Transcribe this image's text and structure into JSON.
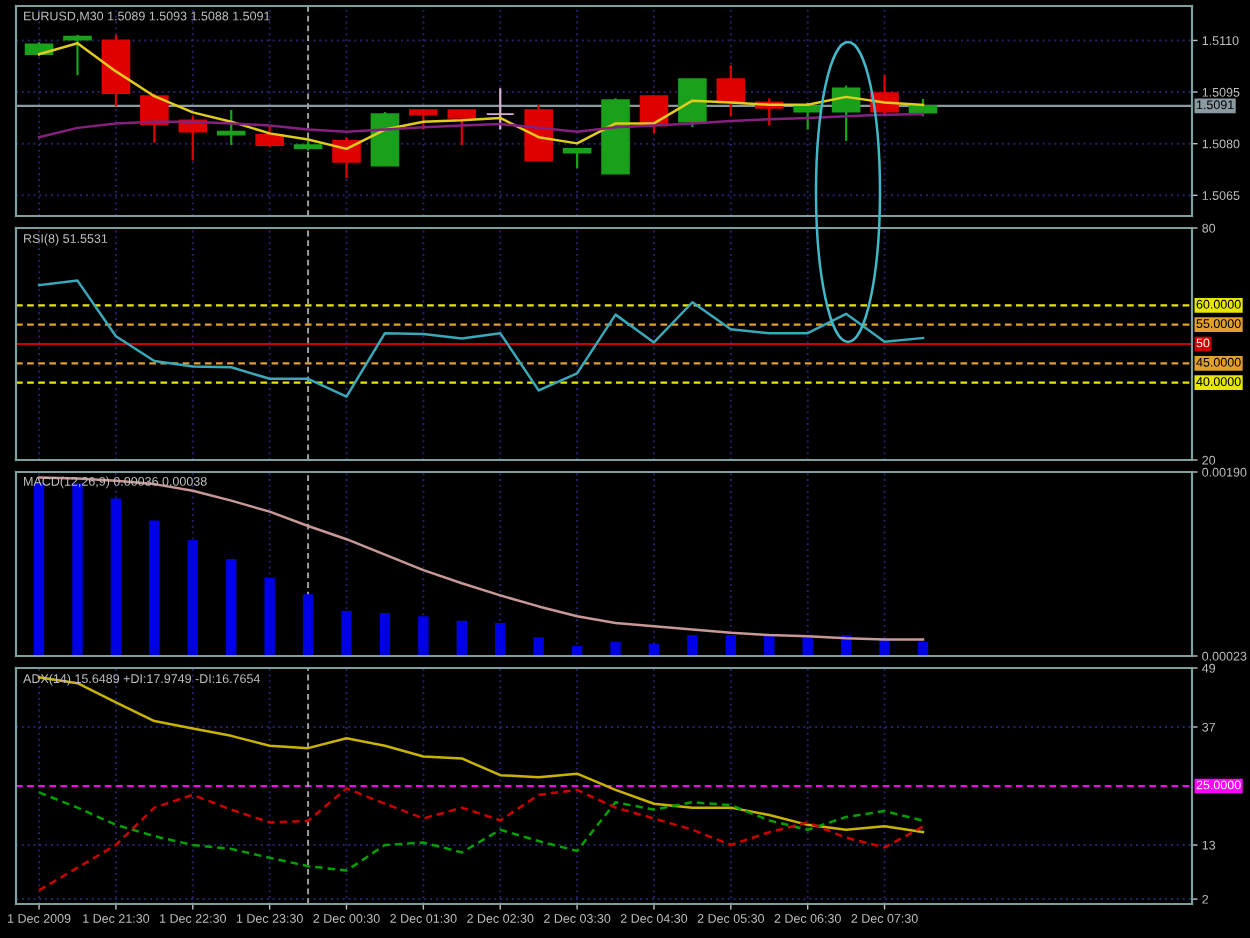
{
  "chart_data": [
    {
      "type": "candlestick",
      "title": "EURUSD,M30 1.5089 1.5093 1.5088 1.5091",
      "x": [
        "2009-12-01T20:30",
        "2009-12-01T21:00",
        "2009-12-01T21:30",
        "2009-12-01T22:00",
        "2009-12-01T22:30",
        "2009-12-01T23:00",
        "2009-12-01T23:30",
        "2009-12-02T00:00",
        "2009-12-02T00:30",
        "2009-12-02T01:00",
        "2009-12-02T01:30",
        "2009-12-02T02:00",
        "2009-12-02T02:30",
        "2009-12-02T03:00",
        "2009-12-02T03:30",
        "2009-12-02T04:00",
        "2009-12-02T04:30",
        "2009-12-02T05:00",
        "2009-12-02T05:30",
        "2009-12-02T06:00",
        "2009-12-02T06:30",
        "2009-12-02T07:00",
        "2009-12-02T07:30",
        "2009-12-02T08:00"
      ],
      "xlim": [
        "2009-12-01T20:12",
        "2009-12-02T11:30"
      ],
      "xticks": [
        {
          "value": "2009-12-01T20:30",
          "label": null
        },
        {
          "value": "2009-12-01T21:30",
          "label": null
        },
        {
          "value": "2009-12-01T22:30",
          "label": null
        },
        {
          "value": "2009-12-01T23:30",
          "label": null
        },
        {
          "value": "2009-12-02T00:30",
          "label": null
        },
        {
          "value": "2009-12-02T01:30",
          "label": null
        },
        {
          "value": "2009-12-02T02:30",
          "label": null
        },
        {
          "value": "2009-12-02T03:30",
          "label": null
        },
        {
          "value": "2009-12-02T04:30",
          "label": null
        },
        {
          "value": "2009-12-02T05:30",
          "label": null
        },
        {
          "value": "2009-12-02T06:30",
          "label": null
        },
        {
          "value": "2009-12-02T07:30",
          "label": null
        }
      ],
      "tick_labels": "y",
      "ohlc": [
        [
          1.5106,
          1.51095,
          1.51055,
          1.51089
        ],
        [
          1.51102,
          1.51116,
          1.50999,
          1.51111
        ],
        [
          1.511,
          1.51116,
          1.50909,
          1.50947
        ],
        [
          1.50938,
          1.50945,
          1.50803,
          1.50857
        ],
        [
          1.50868,
          1.5088,
          1.50751,
          1.50835
        ],
        [
          1.50826,
          1.50898,
          1.50796,
          1.50835
        ],
        [
          1.50826,
          1.50853,
          1.5079,
          1.50796
        ],
        [
          1.50787,
          1.50808,
          1.5078,
          1.50796
        ],
        [
          1.50808,
          1.50819,
          1.507,
          1.50747
        ],
        [
          1.50736,
          1.50892,
          1.50736,
          1.50886
        ],
        [
          1.50898,
          1.509,
          1.50841,
          1.50884
        ],
        [
          1.50898,
          1.509,
          1.50796,
          1.50875
        ],
        [
          1.50886,
          1.50961,
          1.50841,
          1.50886
        ],
        [
          1.50898,
          1.50913,
          1.50751,
          1.50751
        ],
        [
          1.50774,
          1.50785,
          1.50729,
          1.50785
        ],
        [
          1.50713,
          1.50932,
          1.50713,
          1.50927
        ],
        [
          1.50938,
          1.5094,
          1.5083,
          1.50853
        ],
        [
          1.50864,
          1.50988,
          1.50848,
          1.50988
        ],
        [
          1.50988,
          1.51028,
          1.5088,
          1.5092
        ],
        [
          1.5092,
          1.50932,
          1.50853,
          1.50904
        ],
        [
          1.50893,
          1.5092,
          1.50841,
          1.50909
        ],
        [
          1.50893,
          1.50969,
          1.50808,
          1.50961
        ],
        [
          1.50947,
          1.50999,
          1.5088,
          1.50893
        ],
        [
          1.5089,
          1.5093,
          1.5088,
          1.5091
        ]
      ],
      "colors": [
        "#1aa01a",
        "#1aa01a",
        "#e00000",
        "#e00000",
        "#e00000",
        "#1aa01a",
        "#e00000",
        "#1aa01a",
        "#e00000",
        "#1aa01a",
        "#e00000",
        "#e00000",
        "#d8b0d0",
        "#e00000",
        "#1aa01a",
        "#1aa01a",
        "#e00000",
        "#1aa01a",
        "#e00000",
        "#e00000",
        "#1aa01a",
        "#1aa01a",
        "#e00000",
        "#1aa01a"
      ],
      "series": [
        {
          "type": "line",
          "color": "#e0cc1c",
          "values": [
            1.5106,
            1.51092,
            1.5101,
            1.50938,
            1.50891,
            1.50864,
            1.5083,
            1.50812,
            1.50785,
            1.50841,
            1.50864,
            1.50868,
            1.50875,
            1.50819,
            1.50801,
            1.50859,
            1.50859,
            1.50925,
            1.5092,
            1.50913,
            1.50913,
            1.50936,
            1.5092,
            1.50913
          ]
        },
        {
          "type": "line",
          "color": "#86207f",
          "values": [
            1.50819,
            1.50846,
            1.50859,
            1.50864,
            1.50864,
            1.50859,
            1.50853,
            1.50841,
            1.50835,
            1.50841,
            1.50848,
            1.50853,
            1.50857,
            1.50846,
            1.50835,
            1.50848,
            1.50853,
            1.50859,
            1.50866,
            1.50871,
            1.50875,
            1.5088,
            1.50884,
            1.50886
          ]
        }
      ],
      "ylim": [
        1.5059,
        1.512
      ],
      "yticks": [
        {
          "value": 1.5065,
          "label": "1.5065"
        },
        {
          "value": 1.508,
          "label": "1.5080"
        },
        {
          "value": 1.5095,
          "label": "1.5095"
        },
        {
          "value": 1.511,
          "label": "1.5110"
        }
      ],
      "ref_lines": [
        {
          "axis": "y",
          "value": 1.5091,
          "label": "1.5091",
          "color": "#8a9aa0"
        },
        {
          "axis": "x",
          "value": "2009-12-02T00:00",
          "color": "#a0a0a0",
          "line_style": "dashed"
        }
      ],
      "grid": true
    },
    {
      "type": "line",
      "title": "RSI(8) 51.5531",
      "x": [
        "2009-12-01T20:30",
        "2009-12-01T21:00",
        "2009-12-01T21:30",
        "2009-12-01T22:00",
        "2009-12-01T22:30",
        "2009-12-01T23:00",
        "2009-12-01T23:30",
        "2009-12-02T00:00",
        "2009-12-02T00:30",
        "2009-12-02T01:00",
        "2009-12-02T01:30",
        "2009-12-02T02:00",
        "2009-12-02T02:30",
        "2009-12-02T03:00",
        "2009-12-02T03:30",
        "2009-12-02T04:00",
        "2009-12-02T04:30",
        "2009-12-02T05:00",
        "2009-12-02T05:30",
        "2009-12-02T06:00",
        "2009-12-02T06:30",
        "2009-12-02T07:00",
        "2009-12-02T07:30",
        "2009-12-02T08:00"
      ],
      "xlim": [
        "2009-12-01T20:12",
        "2009-12-02T11:30"
      ],
      "xticks": [
        {
          "value": "2009-12-01T20:30",
          "label": null
        },
        {
          "value": "2009-12-01T21:30",
          "label": null
        },
        {
          "value": "2009-12-01T22:30",
          "label": null
        },
        {
          "value": "2009-12-01T23:30",
          "label": null
        },
        {
          "value": "2009-12-02T00:30",
          "label": null
        },
        {
          "value": "2009-12-02T01:30",
          "label": null
        },
        {
          "value": "2009-12-02T02:30",
          "label": null
        },
        {
          "value": "2009-12-02T03:30",
          "label": null
        },
        {
          "value": "2009-12-02T04:30",
          "label": null
        },
        {
          "value": "2009-12-02T05:30",
          "label": null
        },
        {
          "value": "2009-12-02T06:30",
          "label": null
        },
        {
          "value": "2009-12-02T07:30",
          "label": null
        }
      ],
      "tick_labels": "y",
      "color": "#3aa8b8",
      "values": [
        65.2,
        66.4,
        52.0,
        45.6,
        44.2,
        44.0,
        41.0,
        41.0,
        36.4,
        52.8,
        52.6,
        51.4,
        52.8,
        38.0,
        42.4,
        57.6,
        50.4,
        60.8,
        53.8,
        52.8,
        52.8,
        57.8,
        50.6,
        51.5531
      ],
      "ylim": [
        20,
        80
      ],
      "yticks": [
        20,
        80
      ],
      "ref_lines": [
        {
          "axis": "y",
          "value": 60,
          "label": "60.0000",
          "color": "#e6e600",
          "line_style": "dashed"
        },
        {
          "axis": "y",
          "value": 55,
          "label": "55.0000",
          "color": "#e0a030",
          "line_style": "dashed"
        },
        {
          "axis": "y",
          "value": 50,
          "label": "50",
          "color": "#cc0000",
          "line_style": "solid"
        },
        {
          "axis": "y",
          "value": 45,
          "label": "45.0000",
          "color": "#e0a030",
          "line_style": "dashed"
        },
        {
          "axis": "y",
          "value": 40,
          "label": "40.0000",
          "color": "#e6e600",
          "line_style": "dashed"
        },
        {
          "axis": "x",
          "value": "2009-12-02T00:00",
          "color": "#a0a0a0",
          "line_style": "dashed"
        }
      ],
      "grid": true
    },
    {
      "type": "bar",
      "title": "MACD(12,26,9) 0.00036 0.00038",
      "x": [
        "2009-12-01T20:30",
        "2009-12-01T21:00",
        "2009-12-01T21:30",
        "2009-12-01T22:00",
        "2009-12-01T22:30",
        "2009-12-01T23:00",
        "2009-12-01T23:30",
        "2009-12-02T00:00",
        "2009-12-02T00:30",
        "2009-12-02T01:00",
        "2009-12-02T01:30",
        "2009-12-02T02:00",
        "2009-12-02T02:30",
        "2009-12-02T03:00",
        "2009-12-02T03:30",
        "2009-12-02T04:00",
        "2009-12-02T04:30",
        "2009-12-02T05:00",
        "2009-12-02T05:30",
        "2009-12-02T06:00",
        "2009-12-02T06:30",
        "2009-12-02T07:00",
        "2009-12-02T07:30",
        "2009-12-02T08:00"
      ],
      "xlim": [
        "2009-12-01T20:12",
        "2009-12-02T11:30"
      ],
      "xticks": [
        {
          "value": "2009-12-01T20:30",
          "label": null
        },
        {
          "value": "2009-12-01T21:30",
          "label": null
        },
        {
          "value": "2009-12-01T22:30",
          "label": null
        },
        {
          "value": "2009-12-01T23:30",
          "label": null
        },
        {
          "value": "2009-12-02T00:30",
          "label": null
        },
        {
          "value": "2009-12-02T01:30",
          "label": null
        },
        {
          "value": "2009-12-02T02:30",
          "label": null
        },
        {
          "value": "2009-12-02T03:30",
          "label": null
        },
        {
          "value": "2009-12-02T04:30",
          "label": null
        },
        {
          "value": "2009-12-02T05:30",
          "label": null
        },
        {
          "value": "2009-12-02T06:30",
          "label": null
        },
        {
          "value": "2009-12-02T07:30",
          "label": null
        }
      ],
      "tick_labels": "y",
      "series": [
        {
          "type": "bar",
          "color": "#0000e6",
          "values": [
            0.0018,
            0.0018,
            0.00166,
            0.00146,
            0.00128,
            0.00111,
            0.00094,
            0.00079,
            0.00064,
            0.00062,
            0.00059,
            0.00055,
            0.00053,
            0.0004,
            0.00032,
            0.00036,
            0.00034,
            0.00042,
            0.00042,
            0.00041,
            0.0004,
            0.00042,
            0.00039,
            0.00036
          ]
        },
        {
          "type": "line",
          "color": "#c89898",
          "values": [
            0.00185,
            0.00184,
            0.00182,
            0.00179,
            0.00173,
            0.00164,
            0.00154,
            0.00141,
            0.00129,
            0.00115,
            0.00101,
            0.00089,
            0.00078,
            0.00068,
            0.00059,
            0.00053,
            0.0005,
            0.00047,
            0.00044,
            0.00042,
            0.00041,
            0.00039,
            0.00038,
            0.00038
          ]
        }
      ],
      "ylim": [
        0.00023,
        0.0019
      ],
      "yticks": [
        {
          "value": 0.00023,
          "label": "0.00023"
        },
        {
          "value": 0.0019,
          "label": "0.00190"
        }
      ],
      "ref_lines": [
        {
          "axis": "x",
          "value": "2009-12-02T00:00",
          "color": "#a0a0a0",
          "line_style": "dashed"
        }
      ],
      "grid": true
    },
    {
      "type": "line",
      "title": "ADX(14) 15.6489 +DI:17.9749 -DI:16.7654",
      "x": [
        "2009-12-01T20:30",
        "2009-12-01T21:00",
        "2009-12-01T21:30",
        "2009-12-01T22:00",
        "2009-12-01T22:30",
        "2009-12-01T23:00",
        "2009-12-01T23:30",
        "2009-12-02T00:00",
        "2009-12-02T00:30",
        "2009-12-02T01:00",
        "2009-12-02T01:30",
        "2009-12-02T02:00",
        "2009-12-02T02:30",
        "2009-12-02T03:00",
        "2009-12-02T03:30",
        "2009-12-02T04:00",
        "2009-12-02T04:30",
        "2009-12-02T05:00",
        "2009-12-02T05:30",
        "2009-12-02T06:00",
        "2009-12-02T06:30",
        "2009-12-02T07:00",
        "2009-12-02T07:30",
        "2009-12-02T08:00"
      ],
      "xlim": [
        "2009-12-01T20:12",
        "2009-12-02T11:30"
      ],
      "xticks": [
        {
          "value": "2009-12-01T20:30",
          "label": "1 Dec 2009"
        },
        {
          "value": "2009-12-01T21:30",
          "label": "1 Dec 21:30"
        },
        {
          "value": "2009-12-01T22:30",
          "label": "1 Dec 22:30"
        },
        {
          "value": "2009-12-01T23:30",
          "label": "1 Dec 23:30"
        },
        {
          "value": "2009-12-02T00:30",
          "label": "2 Dec 00:30"
        },
        {
          "value": "2009-12-02T01:30",
          "label": "2 Dec 01:30"
        },
        {
          "value": "2009-12-02T02:30",
          "label": "2 Dec 02:30"
        },
        {
          "value": "2009-12-02T03:30",
          "label": "2 Dec 03:30"
        },
        {
          "value": "2009-12-02T04:30",
          "label": "2 Dec 04:30"
        },
        {
          "value": "2009-12-02T05:30",
          "label": "2 Dec 05:30"
        },
        {
          "value": "2009-12-02T06:30",
          "label": "2 Dec 06:30"
        },
        {
          "value": "2009-12-02T07:30",
          "label": "2 Dec 07:30"
        }
      ],
      "series": [
        {
          "color": "#c8b400",
          "line_style": "solid",
          "values": [
            47.1,
            45.9,
            42.0,
            38.2,
            36.7,
            35.2,
            33.2,
            32.7,
            34.7,
            33.2,
            31.0,
            30.6,
            27.2,
            26.8,
            27.5,
            24.2,
            21.4,
            20.6,
            20.6,
            19.1,
            17.1,
            16.1,
            16.8,
            15.6489
          ]
        },
        {
          "color": "#00a000",
          "line_style": "dashed",
          "values": [
            23.7,
            20.6,
            17.1,
            14.8,
            13.0,
            12.2,
            10.4,
            8.7,
            7.8,
            13.0,
            13.5,
            11.5,
            16.1,
            13.8,
            11.8,
            21.7,
            20.2,
            21.7,
            21.1,
            18.0,
            16.1,
            18.7,
            19.9,
            17.9749
          ]
        },
        {
          "color": "#cc0000",
          "line_style": "dashed",
          "values": [
            3.8,
            8.4,
            13.0,
            20.6,
            23.2,
            20.2,
            17.6,
            17.9,
            24.5,
            21.4,
            18.4,
            20.6,
            18.0,
            23.2,
            24.2,
            20.6,
            18.4,
            16.1,
            13.0,
            15.6,
            17.6,
            14.5,
            12.5,
            16.7654
          ]
        }
      ],
      "ylim": [
        1,
        49
      ],
      "yticks": [
        2,
        13,
        37,
        49
      ],
      "ref_lines": [
        {
          "axis": "y",
          "value": 25,
          "label": "25.0000",
          "color": "#ff00ff",
          "line_style": "dashed"
        },
        {
          "axis": "x",
          "value": "2009-12-02T00:00",
          "color": "#a0a0a0",
          "line_style": "dashed"
        }
      ],
      "grid": true
    }
  ]
}
